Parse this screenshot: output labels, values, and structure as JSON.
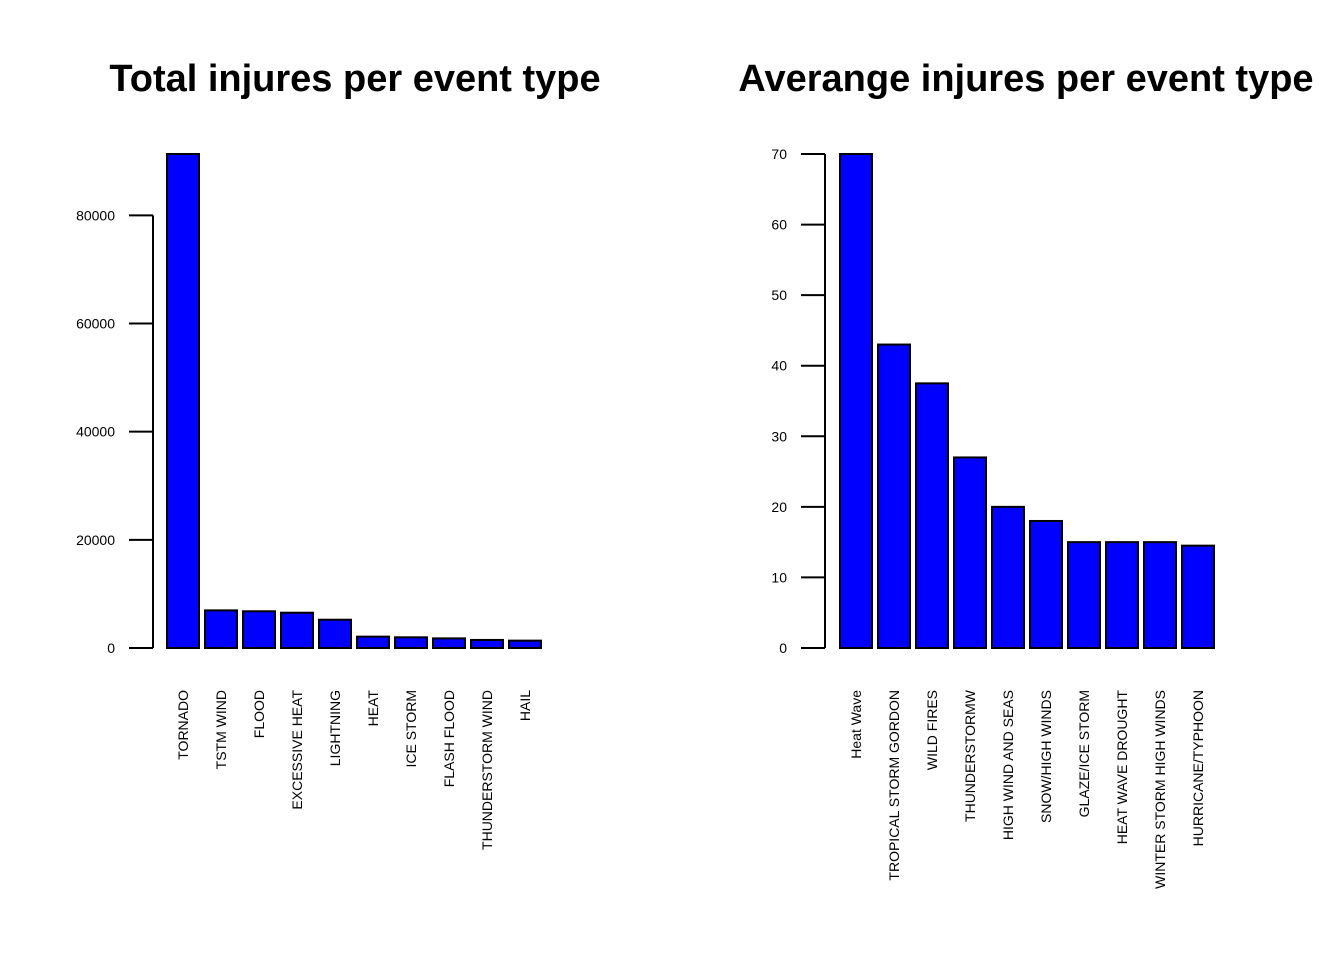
{
  "chart_data": [
    {
      "type": "bar",
      "title": "Total injures per event type",
      "xlabel": "",
      "ylabel": "",
      "categories": [
        "TORNADO",
        "TSTM WIND",
        "FLOOD",
        "EXCESSIVE HEAT",
        "LIGHTNING",
        "HEAT",
        "ICE STORM",
        "FLASH FLOOD",
        "THUNDERSTORM WIND",
        "HAIL"
      ],
      "values": [
        91346,
        6957,
        6789,
        6525,
        5230,
        2100,
        1975,
        1777,
        1488,
        1361
      ],
      "yticks": [
        0,
        20000,
        40000,
        60000,
        80000
      ],
      "ylim": [
        0,
        91346
      ],
      "bar_color": "#0000ff",
      "grid": false
    },
    {
      "type": "bar",
      "title": "Averange injures per event type",
      "xlabel": "",
      "ylabel": "",
      "categories": [
        "Heat Wave",
        "TROPICAL STORM GORDON",
        "WILD FIRES",
        "THUNDERSTORMW",
        "HIGH WIND AND SEAS",
        "SNOW/HIGH WINDS",
        "GLAZE/ICE STORM",
        "HEAT WAVE DROUGHT",
        "WINTER STORM HIGH WINDS",
        "HURRICANE/TYPHOON"
      ],
      "values": [
        70,
        43,
        37.5,
        27,
        20,
        18,
        15,
        15,
        15,
        14.5
      ],
      "yticks": [
        0,
        10,
        20,
        30,
        40,
        50,
        60,
        70
      ],
      "ylim": [
        0,
        70
      ],
      "bar_color": "#0000ff",
      "grid": false
    }
  ]
}
